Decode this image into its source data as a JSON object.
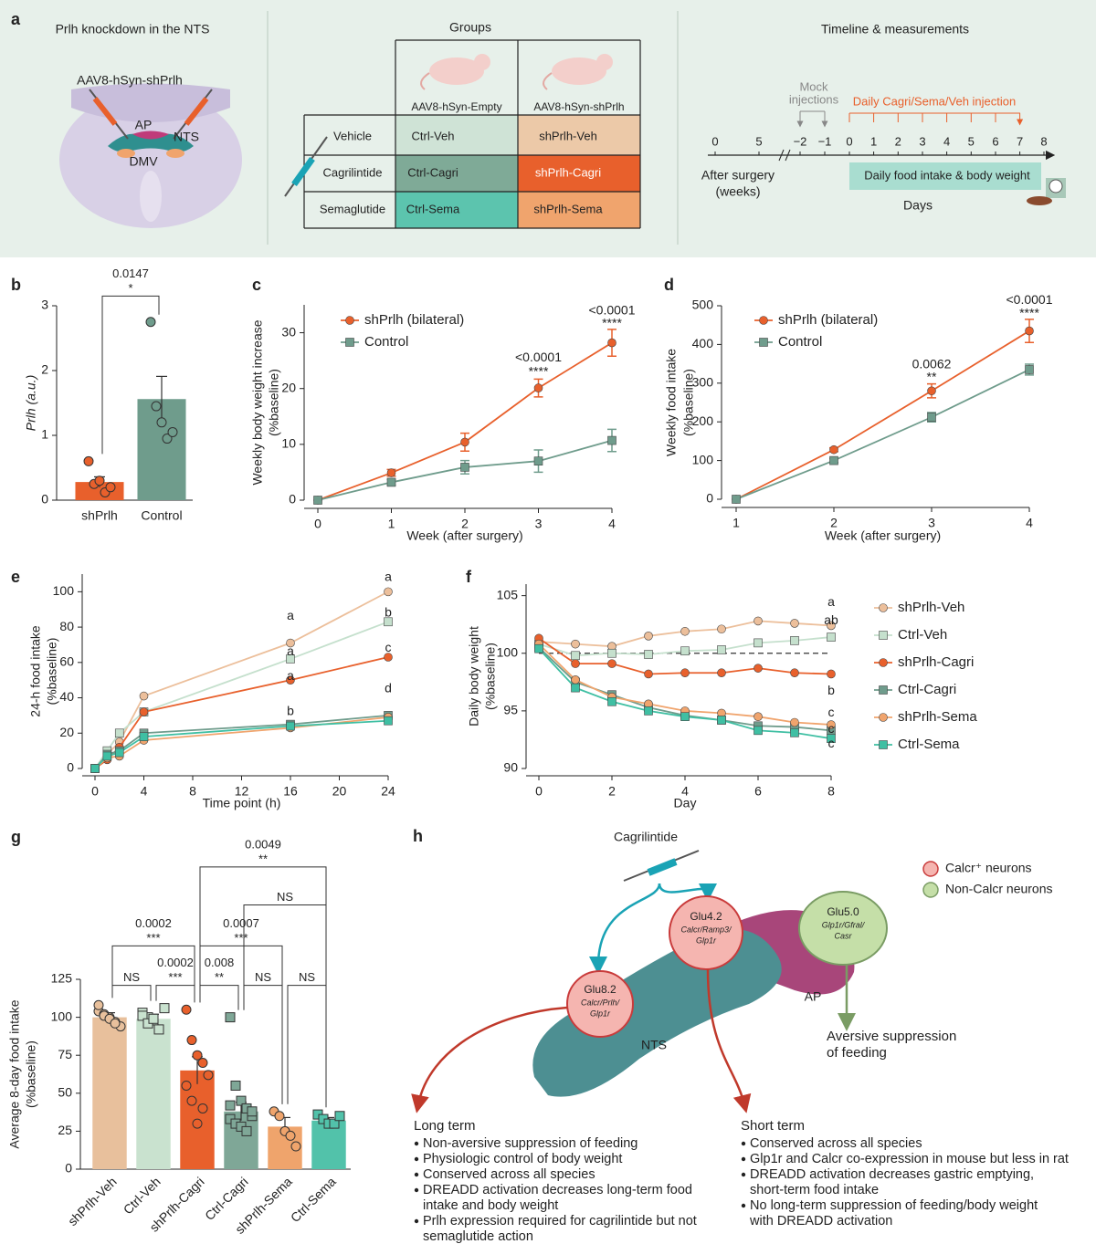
{
  "panel_a": {
    "label": "a",
    "title": "Prlh knockdown in the NTS",
    "vector": "AAV8-hSyn-shPrlh",
    "regions": [
      "AP",
      "NTS",
      "DMV"
    ],
    "groups_title": "Groups",
    "columns": [
      "AAV8-hSyn-Empty",
      "AAV8-hSyn-shPrlh"
    ],
    "rows": [
      {
        "label": "Vehicle",
        "cells": [
          "Ctrl-Veh",
          "shPrlh-Veh"
        ]
      },
      {
        "label": "Cagrilintide",
        "cells": [
          "Ctrl-Cagri",
          "shPrlh-Cagri"
        ]
      },
      {
        "label": "Semaglutide",
        "cells": [
          "Ctrl-Sema",
          "shPrlh-Sema"
        ]
      }
    ],
    "timeline_title": "Timeline & measurements",
    "mock": [
      "Mock",
      "injections"
    ],
    "daily_injection": "Daily Cagri/Sema/Veh injection",
    "ticks": [
      "0",
      "5",
      "−2",
      "−1",
      "0",
      "1",
      "2",
      "3",
      "4",
      "5",
      "6",
      "7",
      "8"
    ],
    "weeks_label": [
      "After surgery",
      "(weeks)"
    ],
    "measurement": "Daily food intake & body weight",
    "days_label": "Days"
  },
  "chart_data": [
    {
      "label": "b",
      "type": "bar",
      "ylabel": "Prlh (a.u.)",
      "categories": [
        "shPrlh",
        "Control"
      ],
      "values": [
        0.28,
        1.56
      ],
      "errors": [
        0.08,
        0.35
      ],
      "colors": [
        "#e8602c",
        "#6f9c8c"
      ],
      "markers": [
        "circle",
        "circle"
      ],
      "points": [
        [
          0.6,
          0.25,
          0.3,
          0.12,
          0.2
        ],
        [
          2.75,
          1.45,
          1.2,
          0.95,
          1.05
        ]
      ],
      "ylim": [
        0,
        3
      ],
      "yticks": [
        0,
        1,
        2,
        3
      ],
      "comparisons": [
        {
          "groups": [
            0,
            1
          ],
          "level": 3.15,
          "texts": [
            "0.0147",
            "*"
          ]
        }
      ]
    },
    {
      "label": "c",
      "type": "line",
      "ylabel": [
        "Weekly body weight increase",
        "(%baseline)"
      ],
      "xlabel": "Week (after surgery)",
      "x": [
        0,
        1,
        2,
        3,
        4
      ],
      "xlim": [
        0,
        4
      ],
      "xticks": [
        0,
        1,
        2,
        3,
        4
      ],
      "ylim": [
        0,
        35
      ],
      "yticks": [
        0,
        10,
        20,
        30
      ],
      "legend": "upper left",
      "series": [
        {
          "name": "shPrlh (bilateral)",
          "color": "#e8602c",
          "marker": "circle",
          "values": [
            0,
            4.9,
            10.4,
            20.1,
            28.2
          ],
          "errors": [
            0,
            0.6,
            1.6,
            1.6,
            2.4
          ]
        },
        {
          "name": "Control",
          "color": "#6f9c8c",
          "marker": "square",
          "values": [
            0,
            3.2,
            5.9,
            7.0,
            10.7
          ],
          "errors": [
            0,
            0.5,
            1.2,
            2.0,
            2.0
          ]
        }
      ],
      "annotations": [
        {
          "x": 3,
          "y": 25.5,
          "text": "<0.0001"
        },
        {
          "x": 3,
          "y": 22.9,
          "text": "****"
        },
        {
          "x": 4,
          "y": 33.9,
          "text": "<0.0001"
        },
        {
          "x": 4,
          "y": 31.6,
          "text": "****"
        }
      ]
    },
    {
      "label": "d",
      "type": "line",
      "ylabel": [
        "Weekly food intake",
        "(%baseline)"
      ],
      "xlabel": "Week (after surgery)",
      "x": [
        1,
        2,
        3,
        4
      ],
      "xlim": [
        1,
        4
      ],
      "xticks": [
        1,
        2,
        3,
        4
      ],
      "ylim": [
        0,
        500
      ],
      "yticks": [
        0,
        100,
        200,
        300,
        400,
        500
      ],
      "legend": "upper left",
      "series": [
        {
          "name": "shPrlh (bilateral)",
          "color": "#e8602c",
          "marker": "circle",
          "values": [
            0,
            128,
            280,
            435
          ],
          "errors": [
            0,
            5,
            18,
            30
          ]
        },
        {
          "name": "Control",
          "color": "#6f9c8c",
          "marker": "square",
          "values": [
            0,
            100,
            212,
            335
          ],
          "errors": [
            0,
            5,
            12,
            14
          ]
        }
      ],
      "annotations": [
        {
          "x": 3,
          "y": 347,
          "text": "0.0062"
        },
        {
          "x": 3,
          "y": 314,
          "text": "**"
        },
        {
          "x": 4,
          "y": 514,
          "text": "<0.0001"
        },
        {
          "x": 4,
          "y": 479,
          "text": "****"
        }
      ]
    },
    {
      "label": "e",
      "type": "line",
      "ylabel": [
        "24-h food intake",
        "(%baseline)"
      ],
      "xlabel": "Time point (h)",
      "x": [
        0,
        1,
        2,
        4,
        16,
        24
      ],
      "xlim": [
        0,
        24
      ],
      "xticks": [
        0,
        4,
        8,
        12,
        16,
        20,
        24
      ],
      "ylim": [
        0,
        110
      ],
      "yticks": [
        0,
        20,
        40,
        60,
        80,
        100
      ],
      "series": [
        {
          "color": "#ecbf9b",
          "marker": "circle",
          "values": [
            0,
            8,
            15,
            41,
            71,
            100
          ]
        },
        {
          "color": "#c5e0cd",
          "marker": "square",
          "values": [
            0,
            10,
            20,
            32,
            62,
            83
          ]
        },
        {
          "color": "#e8602c",
          "marker": "circle",
          "values": [
            0,
            5,
            12,
            32,
            50,
            63
          ]
        },
        {
          "color": "#6f9c8c",
          "marker": "square",
          "values": [
            0,
            8,
            10,
            20,
            25,
            30
          ]
        },
        {
          "color": "#f0a46d",
          "marker": "circle",
          "values": [
            0,
            6,
            7,
            16,
            23,
            29
          ]
        },
        {
          "color": "#3fbfa3",
          "marker": "square",
          "values": [
            0,
            7,
            9,
            18,
            24,
            27
          ]
        }
      ],
      "annotations": [
        {
          "x": 16,
          "y": 86,
          "text": "a"
        },
        {
          "x": 16,
          "y": 66,
          "text": "a"
        },
        {
          "x": 16,
          "y": 52,
          "text": "a"
        },
        {
          "x": 16,
          "y": 32,
          "text": "b"
        },
        {
          "x": 24,
          "y": 108,
          "text": "a"
        },
        {
          "x": 24,
          "y": 88,
          "text": "b"
        },
        {
          "x": 24,
          "y": 68,
          "text": "c"
        },
        {
          "x": 24,
          "y": 45,
          "text": "d"
        }
      ]
    },
    {
      "label": "f",
      "type": "line",
      "ylabel": [
        "Daily body weight",
        "(%baseline)"
      ],
      "xlabel": "Day",
      "x": [
        0,
        1,
        2,
        3,
        4,
        5,
        6,
        7,
        8
      ],
      "xlim": [
        0,
        8
      ],
      "xticks": [
        0,
        2,
        4,
        6,
        8
      ],
      "ylim": [
        90,
        106
      ],
      "yticks": [
        90,
        95,
        100,
        105
      ],
      "hline": 100,
      "legend": "right",
      "series": [
        {
          "name": "shPrlh-Veh",
          "color": "#ecbf9b",
          "marker": "circle",
          "values": [
            101,
            100.8,
            100.6,
            101.5,
            101.9,
            102.1,
            102.8,
            102.6,
            102.4
          ]
        },
        {
          "name": "Ctrl-Veh",
          "color": "#c5e0cd",
          "marker": "square",
          "values": [
            100.8,
            99.8,
            100,
            99.9,
            100.2,
            100.3,
            100.9,
            101.1,
            101.4
          ]
        },
        {
          "name": "shPrlh-Cagri",
          "color": "#e8602c",
          "marker": "circle",
          "values": [
            101.3,
            99.1,
            99.1,
            98.2,
            98.3,
            98.3,
            98.7,
            98.3,
            98.2
          ]
        },
        {
          "name": "Ctrl-Cagri",
          "color": "#6f9c8c",
          "marker": "square",
          "values": [
            100.5,
            97.5,
            96.4,
            95.3,
            94.6,
            94.2,
            93.7,
            93.6,
            93.3
          ]
        },
        {
          "name": "shPrlh-Sema",
          "color": "#f0a46d",
          "marker": "circle",
          "values": [
            100.8,
            97.7,
            96.2,
            95.6,
            95.0,
            94.8,
            94.5,
            94.0,
            93.8
          ]
        },
        {
          "name": "Ctrl-Sema",
          "color": "#3fbfa3",
          "marker": "square",
          "values": [
            100.4,
            97.0,
            95.8,
            95.0,
            94.5,
            94.2,
            93.3,
            93.1,
            92.6
          ]
        }
      ],
      "annotations": [
        {
          "x": 8,
          "y": 104.4,
          "text": "a"
        },
        {
          "x": 8,
          "y": 102.8,
          "text": "ab"
        },
        {
          "x": 8,
          "y": 96.7,
          "text": "b"
        },
        {
          "x": 8,
          "y": 94.8,
          "text": "c"
        },
        {
          "x": 8,
          "y": 93.4,
          "text": "c"
        },
        {
          "x": 8,
          "y": 92.1,
          "text": "c"
        }
      ]
    },
    {
      "label": "g",
      "type": "bar",
      "ylabel": [
        "Average 8-day food intake",
        "(%baseline)"
      ],
      "categories": [
        "shPrlh-Veh",
        "Ctrl-Veh",
        "shPrlh-Cagri",
        "Ctrl-Cagri",
        "shPrlh-Sema",
        "Ctrl-Sema"
      ],
      "values": [
        100,
        99,
        65,
        38,
        28,
        32
      ],
      "errors": [
        3,
        3,
        9,
        6,
        6,
        2
      ],
      "colors": [
        "#e8c09c",
        "#c9e2cf",
        "#e8602c",
        "#7fa797",
        "#efa46c",
        "#52c2aa"
      ],
      "markers": [
        "circle",
        "square",
        "circle",
        "square",
        "circle",
        "square"
      ],
      "points": [
        [
          104,
          102,
          100,
          97,
          94,
          108,
          101,
          99,
          96
        ],
        [
          103,
          100,
          98,
          92,
          106,
          101,
          96,
          99
        ],
        [
          105,
          85,
          75,
          70,
          62,
          55,
          45,
          30,
          40
        ],
        [
          100,
          55,
          45,
          40,
          35,
          33,
          30,
          28,
          25,
          38,
          42
        ],
        [
          38,
          35,
          25,
          22,
          15
        ],
        [
          36,
          33,
          30,
          30,
          35
        ]
      ],
      "ylim": [
        0,
        125
      ],
      "yticks": [
        0,
        25,
        50,
        75,
        100,
        125
      ],
      "comparisons": [
        {
          "groups": [
            0,
            1
          ],
          "level": 121,
          "texts": [
            "NS"
          ]
        },
        {
          "groups": [
            1,
            2
          ],
          "level": 121,
          "texts": [
            "0.0002",
            "***"
          ]
        },
        {
          "groups": [
            2,
            3
          ],
          "level": 121,
          "texts": [
            "0.008",
            "**"
          ]
        },
        {
          "groups": [
            3,
            4
          ],
          "level": 121,
          "texts": [
            "NS"
          ]
        },
        {
          "groups": [
            4,
            5
          ],
          "level": 121,
          "texts": [
            "NS"
          ]
        },
        {
          "groups": [
            0,
            2
          ],
          "level": 147,
          "texts": [
            "0.0002",
            "***"
          ]
        },
        {
          "groups": [
            2,
            4
          ],
          "level": 147,
          "texts": [
            "0.0007",
            "***"
          ]
        },
        {
          "groups": [
            3,
            5
          ],
          "level": 174,
          "texts": [
            "NS"
          ]
        },
        {
          "groups": [
            2,
            5
          ],
          "level": 199,
          "texts": [
            "0.0049",
            "**"
          ]
        }
      ]
    }
  ],
  "panel_h": {
    "label": "h",
    "drug": "Cagrilintide",
    "legend": [
      "Calcr⁺ neurons",
      "Non-Calcr neurons"
    ],
    "clusters": [
      {
        "name": "Glu5.0",
        "markers": [
          "Glp1r/Gfral/",
          "Casr"
        ]
      },
      {
        "name": "Glu4.2",
        "markers": [
          "Calcr/Ramp3/",
          "Glp1r"
        ]
      },
      {
        "name": "Glu8.2",
        "markers": [
          "Calcr/Prlh/",
          "Glp1r"
        ]
      }
    ],
    "regions": [
      "AP",
      "NTS"
    ],
    "aversive": [
      "Aversive suppression",
      "of feeding"
    ],
    "long_term": {
      "title": "Long term",
      "items": [
        [
          "Non-aversive suppression of feeding"
        ],
        [
          "Physiologic control of body weight"
        ],
        [
          "Conserved across all species"
        ],
        [
          "DREADD activation decreases long-term food",
          "intake and body weight"
        ],
        [
          "Prlh expression required for cagrilintide but not",
          "semaglutide action"
        ]
      ]
    },
    "short_term": {
      "title": "Short term",
      "items": [
        [
          "Conserved across all species"
        ],
        [
          "Glp1r and Calcr co-expression in mouse but less in rat"
        ],
        [
          "DREADD activation decreases gastric emptying,",
          "short-term food intake"
        ],
        [
          "No long-term suppression of feeding/body weight",
          "with DREADD activation"
        ]
      ]
    }
  }
}
